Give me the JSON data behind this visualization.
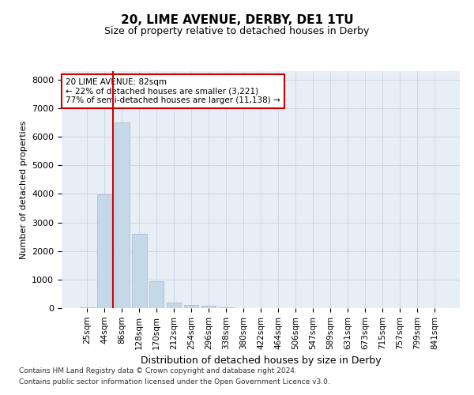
{
  "title": "20, LIME AVENUE, DERBY, DE1 1TU",
  "subtitle": "Size of property relative to detached houses in Derby",
  "xlabel": "Distribution of detached houses by size in Derby",
  "ylabel": "Number of detached properties",
  "bin_labels": [
    "25sqm",
    "44sqm",
    "86sqm",
    "128sqm",
    "170sqm",
    "212sqm",
    "254sqm",
    "296sqm",
    "338sqm",
    "380sqm",
    "422sqm",
    "464sqm",
    "506sqm",
    "547sqm",
    "589sqm",
    "631sqm",
    "673sqm",
    "715sqm",
    "757sqm",
    "799sqm",
    "841sqm"
  ],
  "bar_heights": [
    40,
    3980,
    6500,
    2600,
    950,
    200,
    120,
    80,
    40,
    5,
    0,
    0,
    0,
    0,
    0,
    0,
    0,
    0,
    0,
    0,
    0
  ],
  "bar_color": "#c5d8e8",
  "bar_edge_color": "#a0b8cc",
  "grid_color": "#d0d8e8",
  "background_color": "#e8eef5",
  "vline_color": "#cc0000",
  "annotation_text": "20 LIME AVENUE: 82sqm\n← 22% of detached houses are smaller (3,221)\n77% of semi-detached houses are larger (11,138) →",
  "annotation_box_color": "#ffffff",
  "annotation_box_edge": "#cc0000",
  "ylim": [
    0,
    8300
  ],
  "yticks": [
    0,
    1000,
    2000,
    3000,
    4000,
    5000,
    6000,
    7000,
    8000
  ],
  "footer1": "Contains HM Land Registry data © Crown copyright and database right 2024.",
  "footer2": "Contains public sector information licensed under the Open Government Licence v3.0."
}
